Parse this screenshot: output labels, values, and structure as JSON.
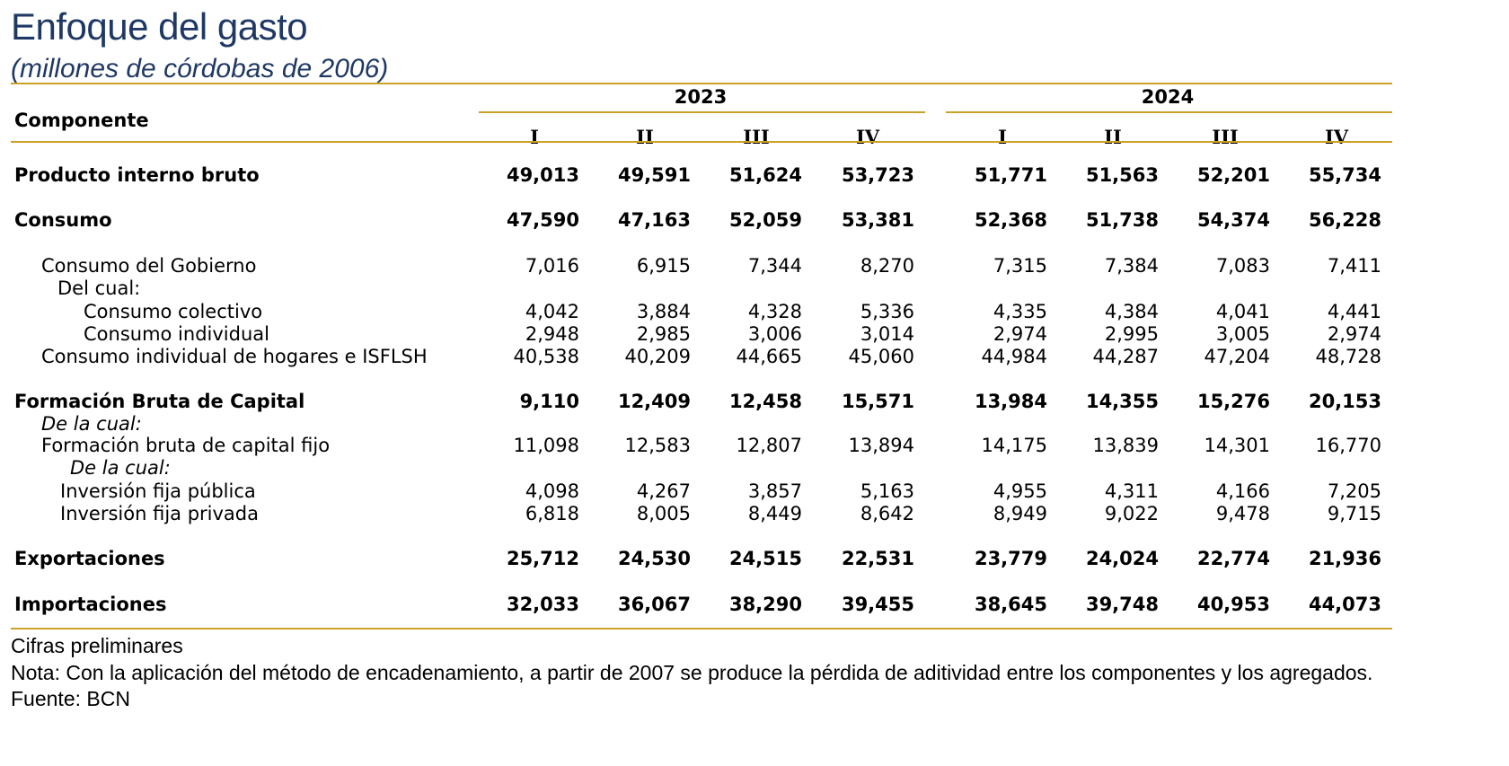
{
  "title": "Enfoque del gasto",
  "subtitle": "(millones de córdobas de 2006)",
  "header": {
    "component_label": "Componente",
    "years": [
      "2023",
      "2024"
    ],
    "quarters": [
      "I",
      "II",
      "III",
      "IV",
      "I",
      "II",
      "III",
      "IV"
    ]
  },
  "rows": [
    {
      "label": "Producto interno bruto",
      "style": "bold",
      "indent": 0,
      "values": [
        "49,013",
        "49,591",
        "51,624",
        "53,723",
        "51,771",
        "51,563",
        "52,201",
        "55,734"
      ]
    },
    {
      "label": "Consumo",
      "style": "bold",
      "indent": 0,
      "values": [
        "47,590",
        "47,163",
        "52,059",
        "53,381",
        "52,368",
        "51,738",
        "54,374",
        "56,228"
      ]
    },
    {
      "label": "Consumo del Gobierno",
      "style": "normal",
      "indent": 1,
      "values": [
        "7,016",
        "6,915",
        "7,344",
        "8,270",
        "7,315",
        "7,384",
        "7,083",
        "7,411"
      ]
    },
    {
      "label": "Del cual:",
      "style": "normal",
      "indent": 2,
      "values": []
    },
    {
      "label": "Consumo colectivo",
      "style": "normal",
      "indent": 3,
      "values": [
        "4,042",
        "3,884",
        "4,328",
        "5,336",
        "4,335",
        "4,384",
        "4,041",
        "4,441"
      ]
    },
    {
      "label": "Consumo individual",
      "style": "normal",
      "indent": 3,
      "values": [
        "2,948",
        "2,985",
        "3,006",
        "3,014",
        "2,974",
        "2,995",
        "3,005",
        "2,974"
      ]
    },
    {
      "label": "Consumo individual de hogares e ISFLSH",
      "style": "normal",
      "indent": 1,
      "values": [
        "40,538",
        "40,209",
        "44,665",
        "45,060",
        "44,984",
        "44,287",
        "47,204",
        "48,728"
      ]
    },
    {
      "label": "Formación Bruta de Capital",
      "style": "bold",
      "indent": 0,
      "values": [
        "9,110",
        "12,409",
        "12,458",
        "15,571",
        "13,984",
        "14,355",
        "15,276",
        "20,153"
      ]
    },
    {
      "label": "De la cual:",
      "style": "italic",
      "indent": 1,
      "values": []
    },
    {
      "label": "Formación bruta de capital fijo",
      "style": "normal",
      "indent": 1,
      "values": [
        "11,098",
        "12,583",
        "12,807",
        "13,894",
        "14,175",
        "13,839",
        "14,301",
        "16,770"
      ]
    },
    {
      "label": "De la cual:",
      "style": "italic",
      "indent": 4,
      "values": []
    },
    {
      "label": "Inversión fija pública",
      "style": "normal",
      "indent": 5,
      "values": [
        "4,098",
        "4,267",
        "3,857",
        "5,163",
        "4,955",
        "4,311",
        "4,166",
        "7,205"
      ]
    },
    {
      "label": "Inversión fija privada",
      "style": "normal",
      "indent": 5,
      "values": [
        "6,818",
        "8,005",
        "8,449",
        "8,642",
        "8,949",
        "9,022",
        "9,478",
        "9,715"
      ]
    },
    {
      "label": "Exportaciones",
      "style": "bold",
      "indent": 0,
      "values": [
        "25,712",
        "24,530",
        "24,515",
        "22,531",
        "23,779",
        "24,024",
        "22,774",
        "21,936"
      ]
    },
    {
      "label": "Importaciones",
      "style": "bold",
      "indent": 0,
      "values": [
        "32,033",
        "36,067",
        "38,290",
        "39,455",
        "38,645",
        "39,748",
        "40,953",
        "44,073"
      ]
    }
  ],
  "footer": {
    "line1": "Cifras preliminares",
    "line2": "Nota: Con la aplicación del método de encadenamiento, a partir de 2007 se produce la pérdida de aditividad entre los componentes y los agregados.",
    "line3": "Fuente: BCN"
  },
  "colors": {
    "title": "#1f3864",
    "rule": "#c9a227"
  }
}
